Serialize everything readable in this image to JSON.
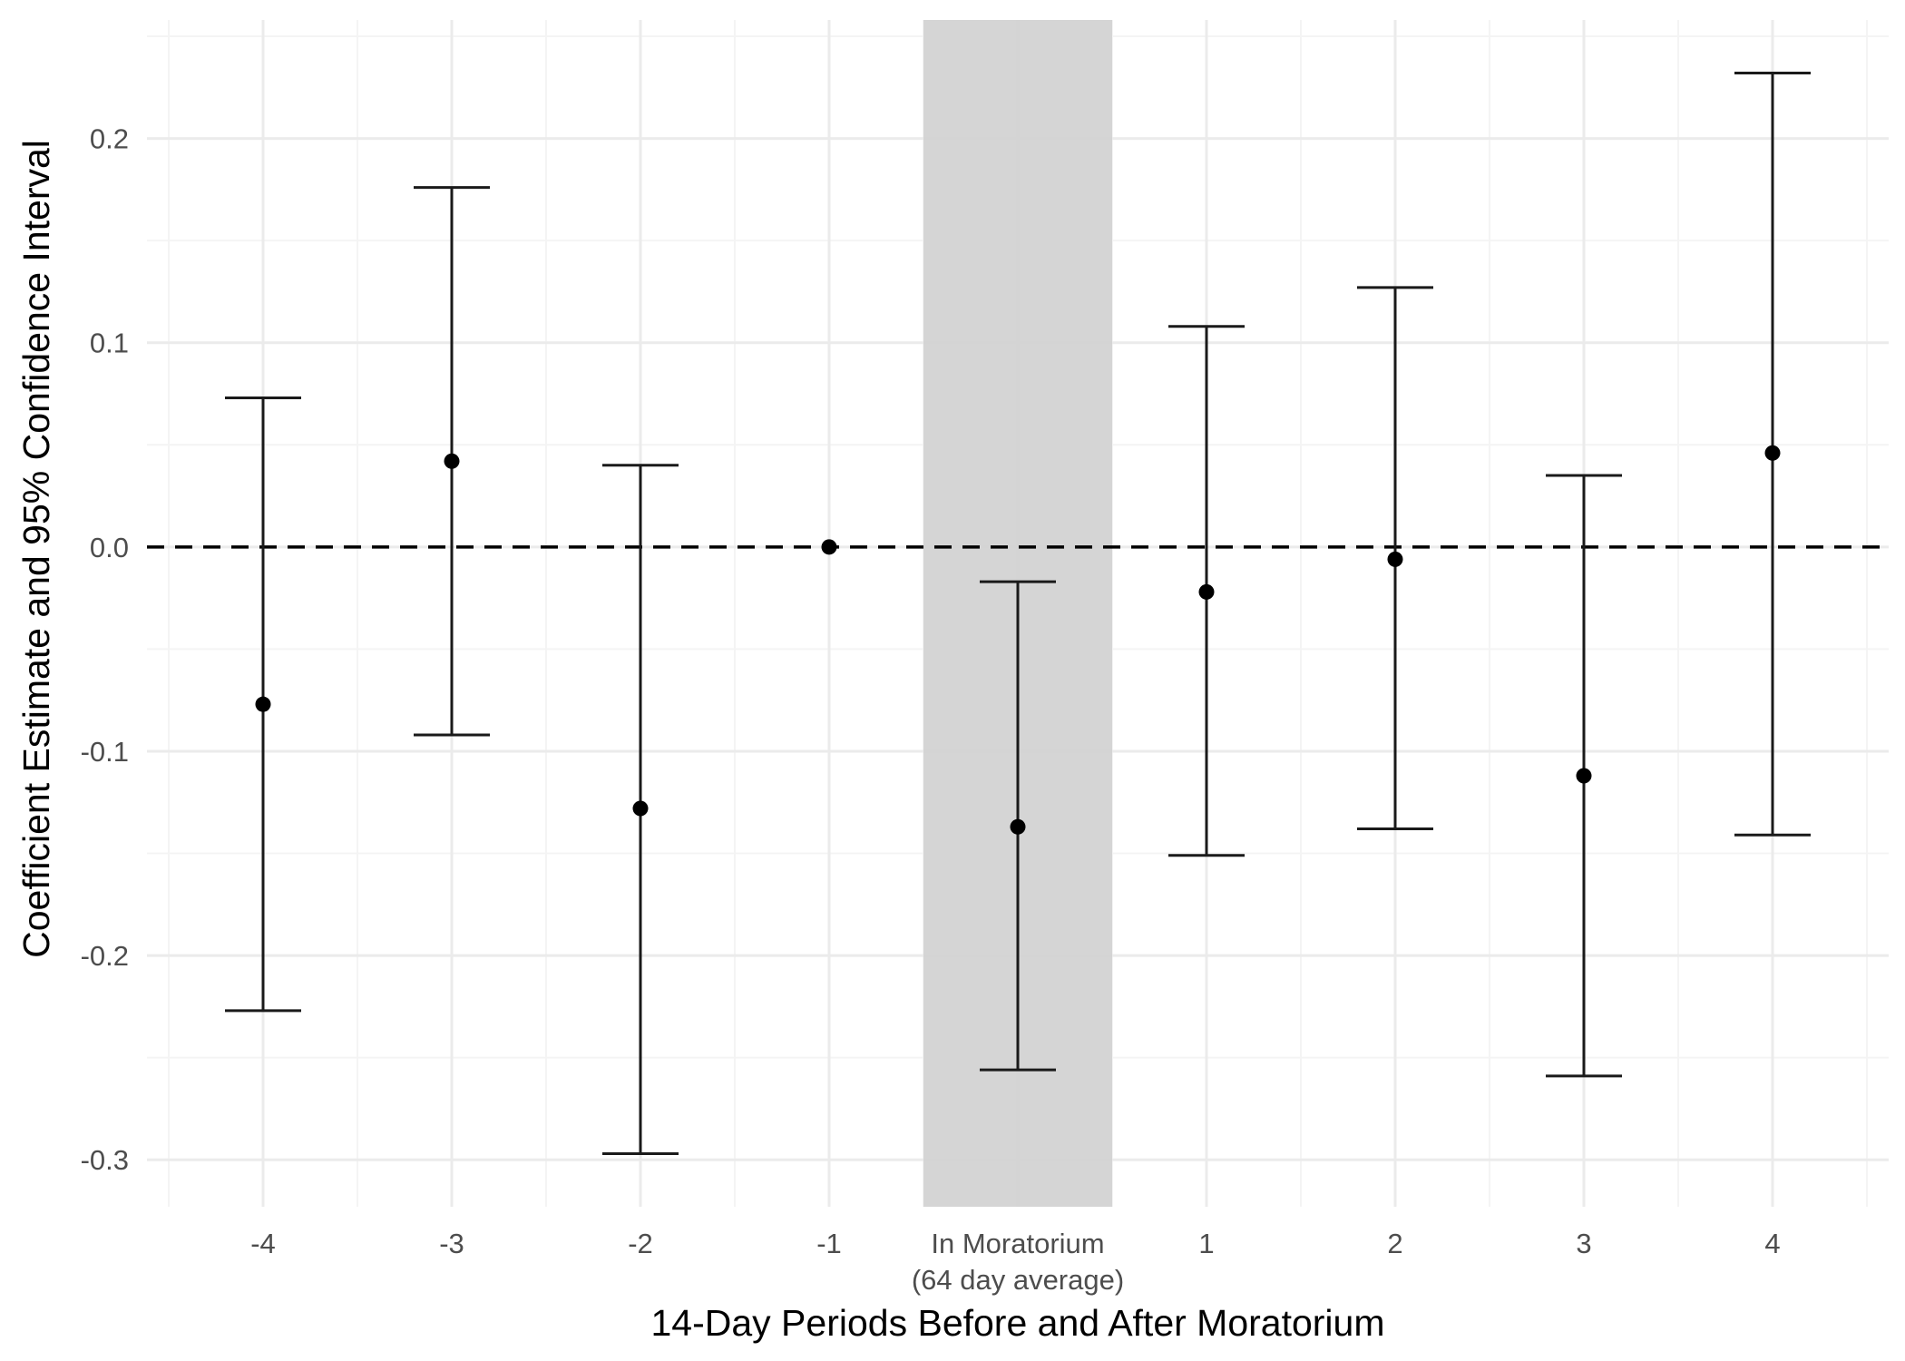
{
  "chart_data": {
    "type": "scatter",
    "subtype": "coefficient plot with error bars",
    "xlabel": "14-Day Periods Before and After Moratorium",
    "ylabel": "Coefficient Estimate and 95% Confidence Interval",
    "categories": [
      [
        "-4"
      ],
      [
        "-3"
      ],
      [
        "-2"
      ],
      [
        "-1"
      ],
      [
        "In Moratorium",
        "(64 day average)"
      ],
      [
        "1"
      ],
      [
        "2"
      ],
      [
        "3"
      ],
      [
        "4"
      ]
    ],
    "estimates": [
      -0.077,
      0.042,
      -0.128,
      0.0,
      -0.137,
      -0.022,
      -0.006,
      -0.112,
      0.046
    ],
    "ci_lower": [
      -0.227,
      -0.092,
      -0.297,
      null,
      -0.256,
      -0.151,
      -0.138,
      -0.259,
      -0.141
    ],
    "ci_upper": [
      0.073,
      0.176,
      0.04,
      null,
      -0.017,
      0.108,
      0.127,
      0.035,
      0.232
    ],
    "ylim": [
      -0.323,
      0.258
    ],
    "yticks": [
      -0.3,
      -0.2,
      -0.1,
      0.0,
      0.1,
      0.2
    ],
    "ytick_labels": [
      "-0.3",
      "-0.2",
      "-0.1",
      "0.0",
      "0.1",
      "0.2"
    ],
    "reference_line": {
      "y": 0,
      "style": "dashed"
    },
    "shaded_category_index": 4,
    "grid": true,
    "legend": "none",
    "colors": {
      "point": "#000000",
      "errorbar": "#1a1a1a",
      "shade": "#d3d3d3",
      "grid_major": "#ebebeb",
      "grid_minor": "#f4f4f4"
    }
  }
}
